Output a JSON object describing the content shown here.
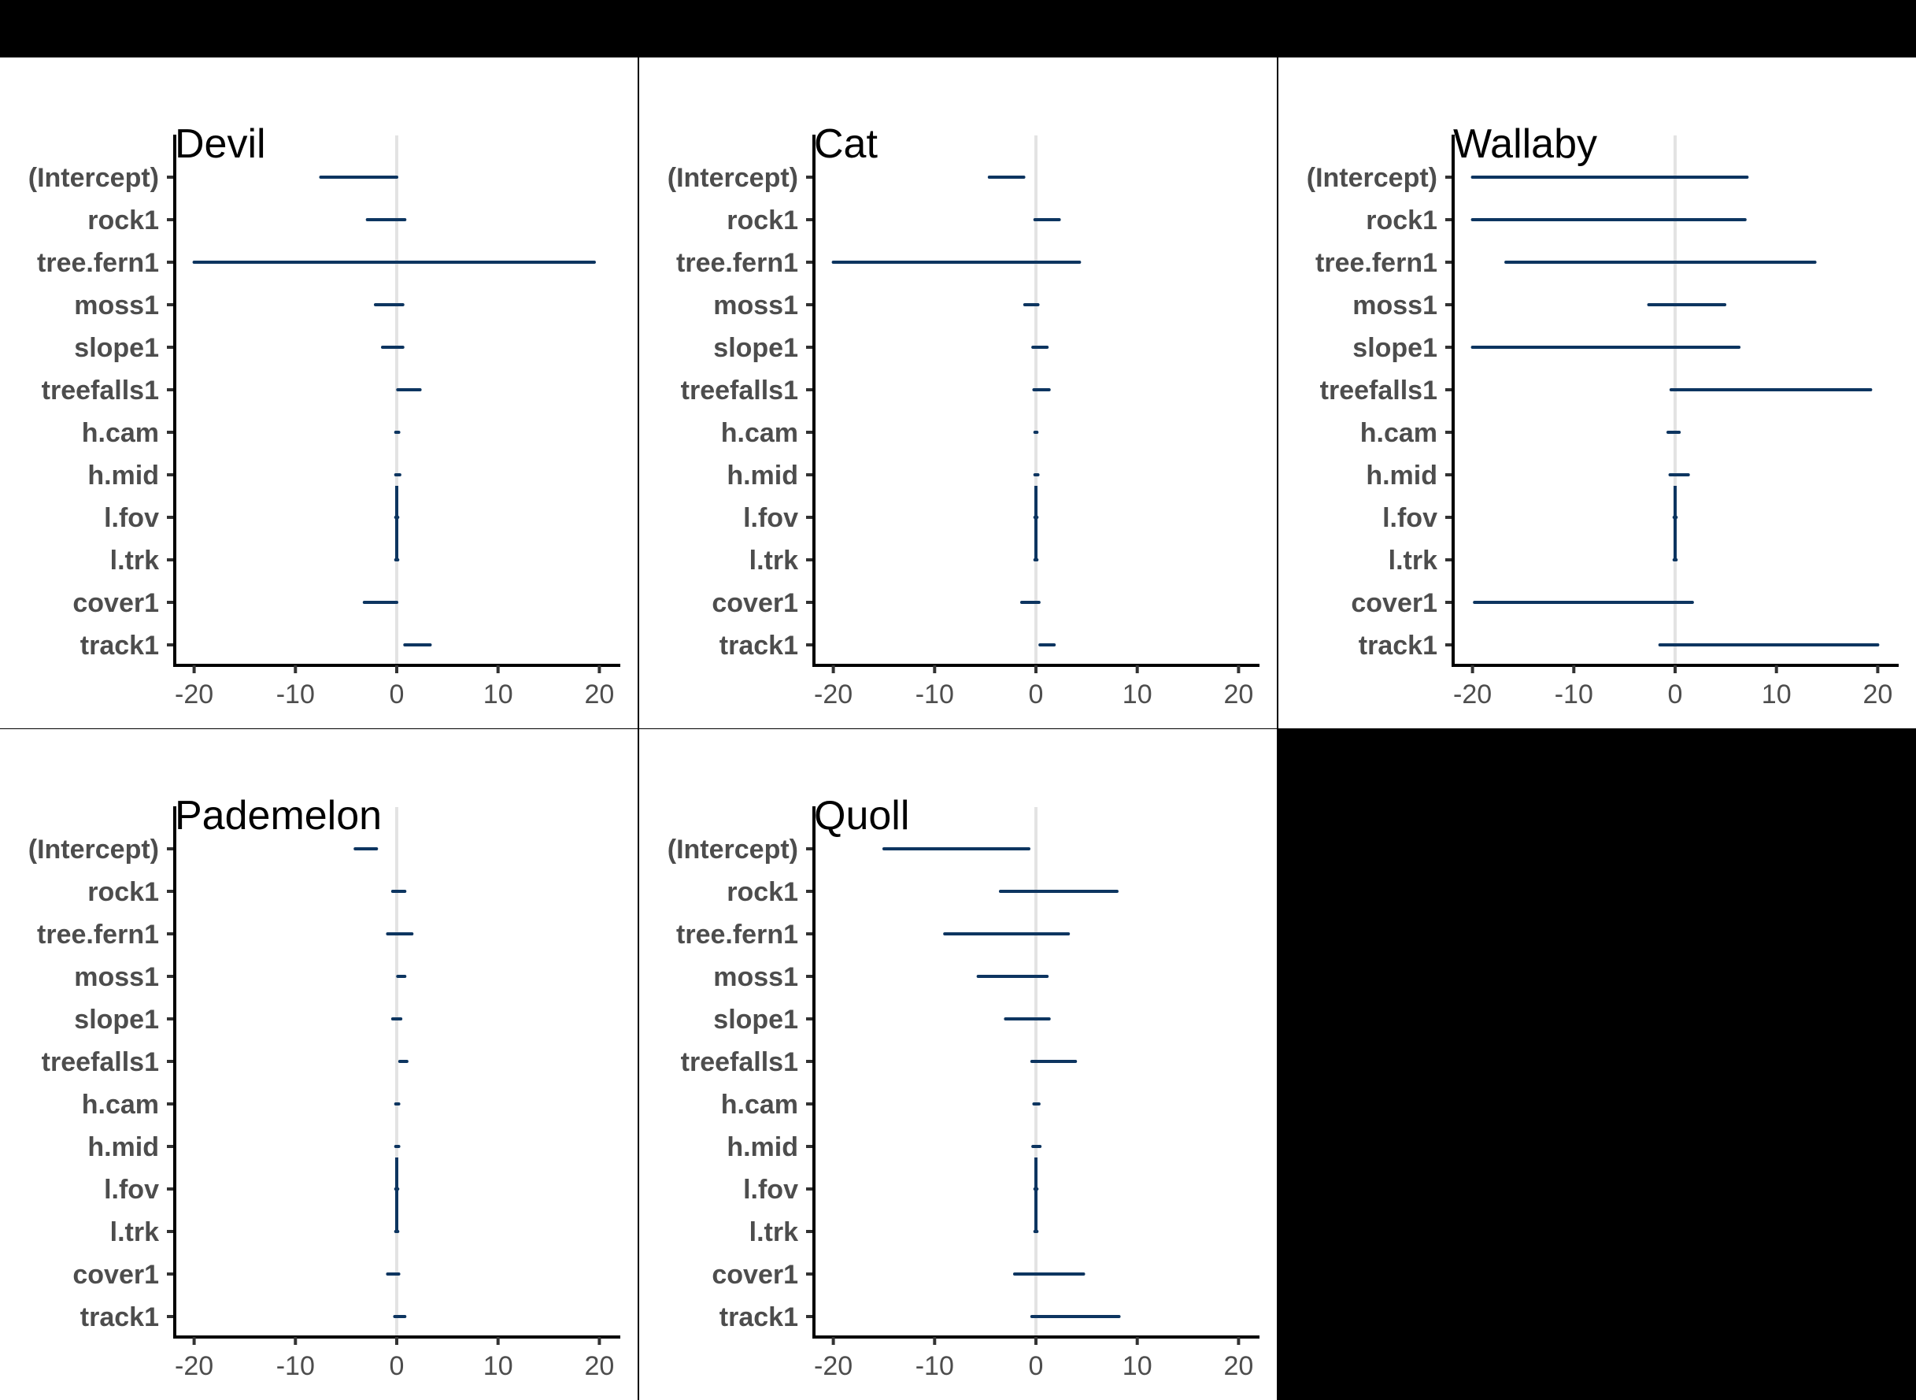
{
  "chart_data": [
    {
      "type": "interval",
      "title": "Devil",
      "categories": [
        "(Intercept)",
        "rock1",
        "tree.fern1",
        "moss1",
        "slope1",
        "treefalls1",
        "h.cam",
        "h.mid",
        "l.fov",
        "l.trk",
        "cover1",
        "track1"
      ],
      "intervals": [
        [
          -7.5,
          0.0
        ],
        [
          -2.9,
          0.8
        ],
        [
          -20.0,
          19.5
        ],
        [
          -2.1,
          0.6
        ],
        [
          -1.4,
          0.6
        ],
        [
          0.1,
          2.3
        ],
        [
          -0.1,
          0.2
        ],
        [
          -0.1,
          0.3
        ],
        [
          -0.1,
          0.1
        ],
        [
          -0.1,
          0.1
        ],
        [
          -3.2,
          0.0
        ],
        [
          0.8,
          3.3
        ]
      ],
      "xlim": [
        -22,
        22
      ],
      "x_ticks": [
        -20,
        -10,
        0,
        10,
        20
      ],
      "tick_labels": [
        "-20",
        "-10",
        "0",
        "10",
        "20"
      ],
      "reference_line": 0
    },
    {
      "type": "interval",
      "title": "Cat",
      "categories": [
        "(Intercept)",
        "rock1",
        "tree.fern1",
        "moss1",
        "slope1",
        "treefalls1",
        "h.cam",
        "h.mid",
        "l.fov",
        "l.trk",
        "cover1",
        "track1"
      ],
      "intervals": [
        [
          -4.6,
          -1.2
        ],
        [
          -0.1,
          2.3
        ],
        [
          -20.0,
          4.3
        ],
        [
          -1.1,
          0.2
        ],
        [
          -0.3,
          1.1
        ],
        [
          -0.2,
          1.3
        ],
        [
          -0.1,
          0.1
        ],
        [
          -0.1,
          0.2
        ],
        [
          -0.1,
          0.1
        ],
        [
          -0.1,
          0.1
        ],
        [
          -1.4,
          0.3
        ],
        [
          0.4,
          1.8
        ]
      ],
      "xlim": [
        -22,
        22
      ],
      "x_ticks": [
        -20,
        -10,
        0,
        10,
        20
      ],
      "tick_labels": [
        "-20",
        "-10",
        "0",
        "10",
        "20"
      ],
      "reference_line": 0
    },
    {
      "type": "interval",
      "title": "Wallaby",
      "categories": [
        "(Intercept)",
        "rock1",
        "tree.fern1",
        "moss1",
        "slope1",
        "treefalls1",
        "h.cam",
        "h.mid",
        "l.fov",
        "l.trk",
        "cover1",
        "track1"
      ],
      "intervals": [
        [
          -20.0,
          7.1
        ],
        [
          -20.0,
          6.9
        ],
        [
          -16.7,
          13.8
        ],
        [
          -2.6,
          4.9
        ],
        [
          -20.0,
          6.3
        ],
        [
          -0.4,
          19.3
        ],
        [
          -0.7,
          0.4
        ],
        [
          -0.5,
          1.3
        ],
        [
          -0.1,
          0.1
        ],
        [
          -0.1,
          0.1
        ],
        [
          -19.8,
          1.7
        ],
        [
          -1.5,
          20.0
        ]
      ],
      "xlim": [
        -22,
        22
      ],
      "x_ticks": [
        -20,
        -10,
        0,
        10,
        20
      ],
      "tick_labels": [
        "-20",
        "-10",
        "0",
        "10",
        "20"
      ],
      "reference_line": 0
    },
    {
      "type": "interval",
      "title": "Pademelon",
      "categories": [
        "(Intercept)",
        "rock1",
        "tree.fern1",
        "moss1",
        "slope1",
        "treefalls1",
        "h.cam",
        "h.mid",
        "l.fov",
        "l.trk",
        "cover1",
        "track1"
      ],
      "intervals": [
        [
          -4.1,
          -2.0
        ],
        [
          -0.4,
          0.8
        ],
        [
          -0.9,
          1.5
        ],
        [
          0.1,
          0.8
        ],
        [
          -0.4,
          0.4
        ],
        [
          0.3,
          1.0
        ],
        [
          -0.1,
          0.2
        ],
        [
          -0.1,
          0.2
        ],
        [
          -0.1,
          0.1
        ],
        [
          -0.1,
          0.1
        ],
        [
          -0.9,
          0.2
        ],
        [
          -0.2,
          0.8
        ]
      ],
      "xlim": [
        -22,
        22
      ],
      "x_ticks": [
        -20,
        -10,
        0,
        10,
        20
      ],
      "tick_labels": [
        "-20",
        "-10",
        "0",
        "10",
        "20"
      ],
      "reference_line": 0
    },
    {
      "type": "interval",
      "title": "Quoll",
      "categories": [
        "(Intercept)",
        "rock1",
        "tree.fern1",
        "moss1",
        "slope1",
        "treefalls1",
        "h.cam",
        "h.mid",
        "l.fov",
        "l.trk",
        "cover1",
        "track1"
      ],
      "intervals": [
        [
          -15.0,
          -0.7
        ],
        [
          -3.5,
          8.0
        ],
        [
          -9.0,
          3.2
        ],
        [
          -5.7,
          1.1
        ],
        [
          -3.0,
          1.3
        ],
        [
          -0.4,
          3.9
        ],
        [
          -0.2,
          0.3
        ],
        [
          -0.3,
          0.4
        ],
        [
          -0.1,
          0.1
        ],
        [
          -0.1,
          0.1
        ],
        [
          -2.1,
          4.7
        ],
        [
          -0.4,
          8.2
        ]
      ],
      "xlim": [
        -22,
        22
      ],
      "x_ticks": [
        -20,
        -10,
        0,
        10,
        20
      ],
      "tick_labels": [
        "-20",
        "-10",
        "0",
        "10",
        "20"
      ],
      "reference_line": 0
    }
  ],
  "colors": {
    "interval_line": "#0d3560",
    "reference_line": "#e3e3e3",
    "axis": "#000000",
    "tick": "#333333",
    "label_text": "#4d4d4d",
    "panel_bg": "#ffffff",
    "page_bg": "#000000"
  }
}
